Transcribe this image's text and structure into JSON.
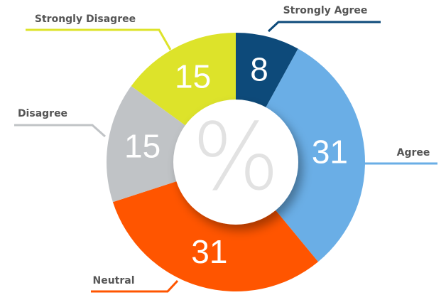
{
  "chart_data": {
    "type": "donut",
    "center_label": "%",
    "categories": [
      "Strongly Agree",
      "Agree",
      "Neutral",
      "Disagree",
      "Strongly Disagree"
    ],
    "values": [
      8,
      31,
      31,
      15,
      15
    ],
    "colors": [
      "#0d4a7a",
      "#6aaee6",
      "#ff5500",
      "#c0c3c6",
      "#dde32a"
    ]
  }
}
